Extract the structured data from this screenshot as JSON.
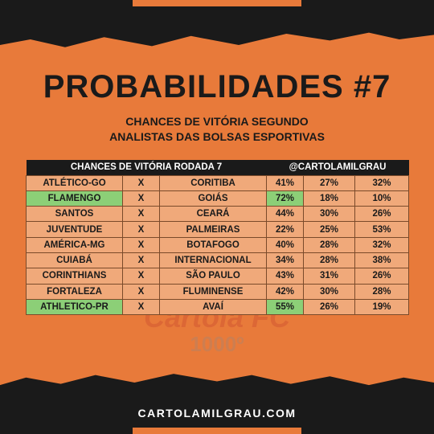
{
  "title": "PROBABILIDADES #7",
  "subtitle_line1": "CHANCES DE VITÓRIA SEGUNDO",
  "subtitle_line2": "ANALISTAS DAS BOLSAS ESPORTIVAS",
  "table": {
    "header_left": "CHANCES DE VITÓRIA RODADA 7",
    "header_right": "@CARTOLAMILGRAU",
    "rows": [
      {
        "home": "ATLÉTICO-GO",
        "vs": "X",
        "away": "CORITIBA",
        "p_home": "41%",
        "p_draw": "27%",
        "p_away": "32%"
      },
      {
        "home": "FLAMENGO",
        "vs": "X",
        "away": "GOIÁS",
        "p_home": "72%",
        "p_draw": "18%",
        "p_away": "10%"
      },
      {
        "home": "SANTOS",
        "vs": "X",
        "away": "CEARÁ",
        "p_home": "44%",
        "p_draw": "30%",
        "p_away": "26%"
      },
      {
        "home": "JUVENTUDE",
        "vs": "X",
        "away": "PALMEIRAS",
        "p_home": "22%",
        "p_draw": "25%",
        "p_away": "53%"
      },
      {
        "home": "AMÉRICA-MG",
        "vs": "X",
        "away": "BOTAFOGO",
        "p_home": "40%",
        "p_draw": "28%",
        "p_away": "32%"
      },
      {
        "home": "CUIABÁ",
        "vs": "X",
        "away": "INTERNACIONAL",
        "p_home": "34%",
        "p_draw": "28%",
        "p_away": "38%"
      },
      {
        "home": "CORINTHIANS",
        "vs": "X",
        "away": "SÃO PAULO",
        "p_home": "43%",
        "p_draw": "31%",
        "p_away": "26%"
      },
      {
        "home": "FORTALEZA",
        "vs": "X",
        "away": "FLUMINENSE",
        "p_home": "42%",
        "p_draw": "30%",
        "p_away": "28%"
      },
      {
        "home": "ATHLETICO-PR",
        "vs": "X",
        "away": "AVAÍ",
        "p_home": "55%",
        "p_draw": "26%",
        "p_away": "19%"
      }
    ]
  },
  "watermark": {
    "logo_text": "Cartola FC",
    "number": "1000º"
  },
  "footer": "CARTOLAMILGRAU.COM",
  "colors": {
    "background": "#e87a3a",
    "dark": "#1a1a1a",
    "cell": "#f0a97a",
    "highlight": "#8ccf77"
  }
}
